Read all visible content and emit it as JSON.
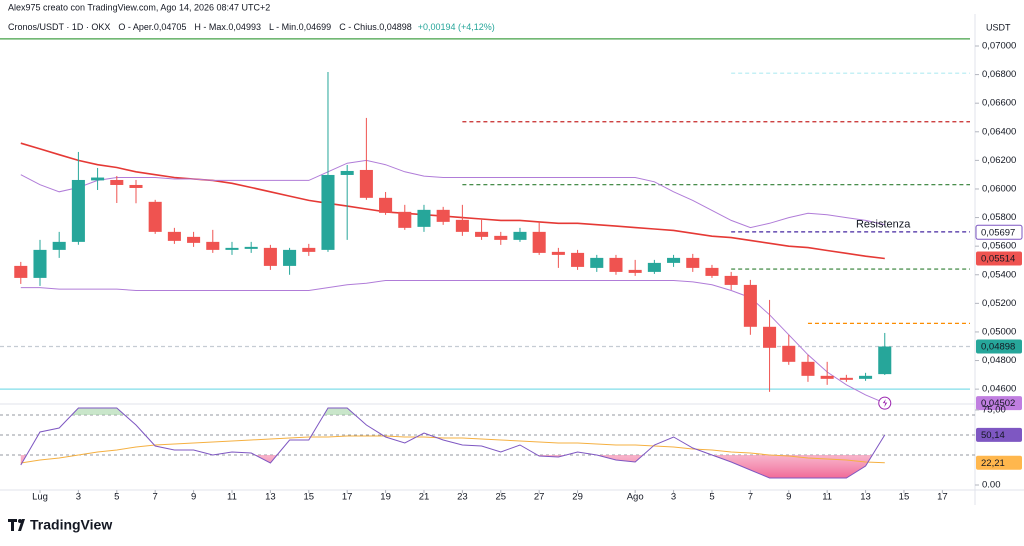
{
  "chart_data": {
    "type": "candlestick",
    "credit": "Alex975 creato con TradingView.com, Ago 14, 2026 08:47 UTC+2",
    "unit": "USDT",
    "legend_title": "Cronos/USDT · 1D · OKX",
    "legend_items": [
      "O - Aper.0,04705",
      "H - Max.0,04993",
      "L - Min.0,04699",
      "C - Chius.0,04898"
    ],
    "legend_change": "+0,00194 (+4,12%)",
    "logo": "TradingView",
    "up_color": "#26a69a",
    "down_color": "#ef5350",
    "x": [
      -1,
      0,
      1,
      2,
      3,
      4,
      5,
      6,
      7,
      8,
      9,
      10,
      11,
      12,
      13,
      14,
      15,
      16,
      17,
      18,
      19,
      20,
      21,
      22,
      23,
      24,
      25,
      26,
      27,
      28,
      29,
      30,
      31,
      32,
      33,
      34,
      35,
      36,
      37,
      38,
      39,
      40,
      41,
      42,
      43,
      44
    ],
    "open": [
      0.05462,
      0.05378,
      0.05574,
      0.0563,
      0.0606,
      0.06063,
      0.06028,
      0.0591,
      0.057,
      0.05665,
      0.0563,
      0.05574,
      0.05581,
      0.05588,
      0.05462,
      0.05588,
      0.05574,
      0.06098,
      0.06133,
      0.05938,
      0.0584,
      0.05735,
      0.05854,
      0.05784,
      0.057,
      0.05672,
      0.05644,
      0.057,
      0.0556,
      0.05553,
      0.05448,
      0.05518,
      0.05434,
      0.0542,
      0.05483,
      0.05518,
      0.05448,
      0.05392,
      0.05329,
      0.05036,
      0.04903,
      0.04791,
      0.04693,
      0.04679,
      0.04672,
      0.04705
    ],
    "high": [
      0.0549,
      0.05644,
      0.057,
      0.06259,
      0.06147,
      0.06091,
      0.06063,
      0.05924,
      0.05728,
      0.057,
      0.05714,
      0.0563,
      0.0563,
      0.05609,
      0.05588,
      0.05616,
      0.06818,
      0.06168,
      0.06497,
      0.05979,
      0.05889,
      0.05889,
      0.05875,
      0.05889,
      0.05784,
      0.057,
      0.05728,
      0.0577,
      0.05588,
      0.05574,
      0.05539,
      0.05539,
      0.05504,
      0.05504,
      0.05539,
      0.05546,
      0.05469,
      0.0542,
      0.05364,
      0.05224,
      0.0498,
      0.0484,
      0.04791,
      0.047,
      0.04714,
      0.04993
    ],
    "low": [
      0.05336,
      0.05322,
      0.05518,
      0.0561,
      0.05993,
      0.05902,
      0.059,
      0.05686,
      0.05616,
      0.05595,
      0.05553,
      0.05539,
      0.05553,
      0.05434,
      0.054,
      0.05532,
      0.0556,
      0.05644,
      0.05924,
      0.05819,
      0.05714,
      0.057,
      0.05749,
      0.05672,
      0.05644,
      0.05609,
      0.0563,
      0.05539,
      0.05448,
      0.05434,
      0.0542,
      0.054,
      0.05392,
      0.05406,
      0.05455,
      0.0542,
      0.05378,
      0.05294,
      0.0498,
      0.04581,
      0.0477,
      0.04651,
      0.0463,
      0.04651,
      0.04658,
      0.04699
    ],
    "close": [
      0.05378,
      0.05574,
      0.0563,
      0.06063,
      0.0608,
      0.06028,
      0.06007,
      0.057,
      0.05637,
      0.05623,
      0.05574,
      0.05588,
      0.05595,
      0.05462,
      0.05574,
      0.0556,
      0.06098,
      0.06126,
      0.05938,
      0.05833,
      0.05728,
      0.05854,
      0.0577,
      0.057,
      0.05665,
      0.05644,
      0.057,
      0.05553,
      0.05539,
      0.05455,
      0.05518,
      0.0542,
      0.05413,
      0.05483,
      0.05518,
      0.05448,
      0.05392,
      0.05329,
      0.05036,
      0.04889,
      0.04791,
      0.04693,
      0.04672,
      0.04665,
      0.04693,
      0.04898
    ],
    "overlays": [
      {
        "color": "#e53935",
        "width": 1.6,
        "values": [
          0.0632,
          0.0628,
          0.0624,
          0.062,
          0.0617,
          0.0615,
          0.0612,
          0.061,
          0.0608,
          0.0607,
          0.0606,
          0.0604,
          0.0601,
          0.0598,
          0.0595,
          0.0592,
          0.059,
          0.0588,
          0.0586,
          0.0584,
          0.0583,
          0.0582,
          0.0581,
          0.058,
          0.0579,
          0.0578,
          0.0578,
          0.0577,
          0.0576,
          0.0576,
          0.0575,
          0.0574,
          0.0573,
          0.0572,
          0.0571,
          0.0569,
          0.0567,
          0.0566,
          0.0564,
          0.0562,
          0.056,
          0.0559,
          0.0557,
          0.0555,
          0.0553,
          0.05514
        ]
      },
      {
        "color": "#b07cd8",
        "width": 1,
        "values": [
          0.061,
          0.0603,
          0.0598,
          0.0601,
          0.0606,
          0.0608,
          0.0608,
          0.0608,
          0.0607,
          0.0607,
          0.0606,
          0.0606,
          0.0606,
          0.0606,
          0.0606,
          0.0606,
          0.0612,
          0.0618,
          0.062,
          0.0617,
          0.0612,
          0.0609,
          0.0608,
          0.0608,
          0.0608,
          0.0608,
          0.0608,
          0.0608,
          0.0608,
          0.0608,
          0.0608,
          0.0608,
          0.0608,
          0.0605,
          0.0598,
          0.0592,
          0.0585,
          0.0578,
          0.0573,
          0.0576,
          0.058,
          0.0583,
          0.0582,
          0.058,
          0.0578,
          0.0575
        ]
      },
      {
        "color": "#b07cd8",
        "width": 1,
        "values": [
          0.0531,
          0.0531,
          0.053,
          0.053,
          0.053,
          0.053,
          0.0529,
          0.0529,
          0.0529,
          0.0529,
          0.0529,
          0.0529,
          0.0529,
          0.0529,
          0.0529,
          0.0529,
          0.0531,
          0.0533,
          0.0534,
          0.0536,
          0.0536,
          0.0536,
          0.0536,
          0.0536,
          0.0536,
          0.0536,
          0.0536,
          0.0536,
          0.0536,
          0.0536,
          0.0536,
          0.0536,
          0.0536,
          0.0536,
          0.0536,
          0.0535,
          0.0533,
          0.0529,
          0.0524,
          0.0512,
          0.0498,
          0.0484,
          0.0472,
          0.0463,
          0.0456,
          0.04502
        ]
      }
    ],
    "levels": [
      {
        "value": 0.0705,
        "color": "#43a047",
        "dash": false
      },
      {
        "value": 0.0681,
        "color": "#b2ebf2",
        "dash": true,
        "x0": 36
      },
      {
        "value": 0.0647,
        "color": "#c62828",
        "dash": true,
        "x0": 22
      },
      {
        "value": 0.0603,
        "color": "#2e7d32",
        "dash": true,
        "x0": 22
      },
      {
        "value": 0.057,
        "color": "#4527a0",
        "dash": true,
        "x0": 36
      },
      {
        "value": 0.0544,
        "color": "#2e7d32",
        "dash": true,
        "x0": 36
      },
      {
        "value": 0.0506,
        "color": "#fb8c00",
        "dash": true,
        "x0": 40
      },
      {
        "value": 0.04898,
        "color": "#c5ccd3",
        "dash": true
      },
      {
        "value": 0.046,
        "color": "#80deea",
        "dash": false
      }
    ],
    "annotation": {
      "text": "Resistenza",
      "x": 42.5,
      "y": 0.0575,
      "color": "#b04fd0"
    },
    "price_labels": [
      {
        "value": 0.05697,
        "label": "0,05697",
        "color": "#ffffff",
        "text_color": "#4527a0",
        "border": "#7e57c2"
      },
      {
        "value": 0.05514,
        "label": "0,05514",
        "color": "#ef5350",
        "text_color": "#ffffff"
      },
      {
        "value": 0.04898,
        "label": "0,04898",
        "color": "#26a69a",
        "text_color": "#ffffff"
      },
      {
        "value": 0.04502,
        "label": "0,04502",
        "color": "#c07ee0",
        "text_color": "#ffffff"
      }
    ],
    "xlim": [
      -2.083,
      48.7
    ],
    "ylim": [
      0.04524,
      0.07056
    ],
    "yticks": [
      {
        "value": 0.07,
        "label": "0,07000"
      },
      {
        "value": 0.068,
        "label": "0,06800"
      },
      {
        "value": 0.066,
        "label": "0,06600"
      },
      {
        "value": 0.064,
        "label": "0,06400"
      },
      {
        "value": 0.062,
        "label": "0,06200"
      },
      {
        "value": 0.06,
        "label": "0,06000"
      },
      {
        "value": 0.058,
        "label": "0,05800"
      },
      {
        "value": 0.056,
        "label": "0,05600"
      },
      {
        "value": 0.054,
        "label": "0,05400"
      },
      {
        "value": 0.052,
        "label": "0,05200"
      },
      {
        "value": 0.05,
        "label": "0,05000"
      },
      {
        "value": 0.048,
        "label": "0,04800"
      },
      {
        "value": 0.046,
        "label": "0,04600"
      }
    ],
    "xticks": [
      {
        "value": 0,
        "label": "Lug"
      },
      {
        "value": 2,
        "label": "3"
      },
      {
        "value": 4,
        "label": "5"
      },
      {
        "value": 6,
        "label": "7"
      },
      {
        "value": 8,
        "label": "9"
      },
      {
        "value": 10,
        "label": "11"
      },
      {
        "value": 12,
        "label": "13"
      },
      {
        "value": 14,
        "label": "15"
      },
      {
        "value": 16,
        "label": "17"
      },
      {
        "value": 18,
        "label": "19"
      },
      {
        "value": 20,
        "label": "21"
      },
      {
        "value": 22,
        "label": "23"
      },
      {
        "value": 24,
        "label": "25"
      },
      {
        "value": 26,
        "label": "27"
      },
      {
        "value": 28,
        "label": "29"
      },
      {
        "value": 31,
        "label": "Ago"
      },
      {
        "value": 33,
        "label": "3"
      },
      {
        "value": 35,
        "label": "5"
      },
      {
        "value": 37,
        "label": "7"
      },
      {
        "value": 39,
        "label": "9"
      },
      {
        "value": 41,
        "label": "11"
      },
      {
        "value": 43,
        "label": "13"
      },
      {
        "value": 45,
        "label": "15"
      },
      {
        "value": 47,
        "label": "17"
      }
    ],
    "rsi": {
      "color": "#7e57c2",
      "values": [
        20,
        53,
        57,
        77,
        77,
        77,
        60,
        39,
        35,
        35,
        30,
        33,
        32,
        22,
        45,
        45,
        77,
        77,
        60,
        48,
        42,
        52,
        45,
        40,
        39,
        33,
        40,
        29,
        28,
        33,
        30,
        25,
        23,
        40,
        48,
        37,
        30,
        23,
        15,
        7,
        7,
        7,
        7,
        7,
        19,
        50.14
      ]
    },
    "rsi_ma": {
      "color": "#f5b041",
      "values": [
        22,
        25,
        27,
        30,
        33,
        35,
        38,
        40,
        41,
        42,
        43,
        44,
        45,
        46,
        47,
        48,
        48,
        49,
        49,
        49,
        48,
        48,
        47,
        47,
        46,
        45,
        44,
        43,
        42,
        42,
        41,
        40,
        40,
        39,
        38,
        36,
        35,
        33,
        32,
        30,
        29,
        27,
        26,
        25,
        23,
        22.21
      ]
    },
    "y2lim": [
      -5,
      80
    ],
    "y2ticks": [
      {
        "value": 75,
        "label": "75,00"
      },
      {
        "value": 0,
        "label": "0.00"
      }
    ],
    "rsi_levels": [
      70,
      50,
      30
    ],
    "rsi_labels": [
      {
        "value": 50.14,
        "label": "50,14",
        "color": "#7e57c2",
        "text_color": "#ffffff"
      },
      {
        "value": 22.21,
        "label": "22,21",
        "color": "#ffb74d",
        "text_color": "#222222"
      }
    ]
  }
}
